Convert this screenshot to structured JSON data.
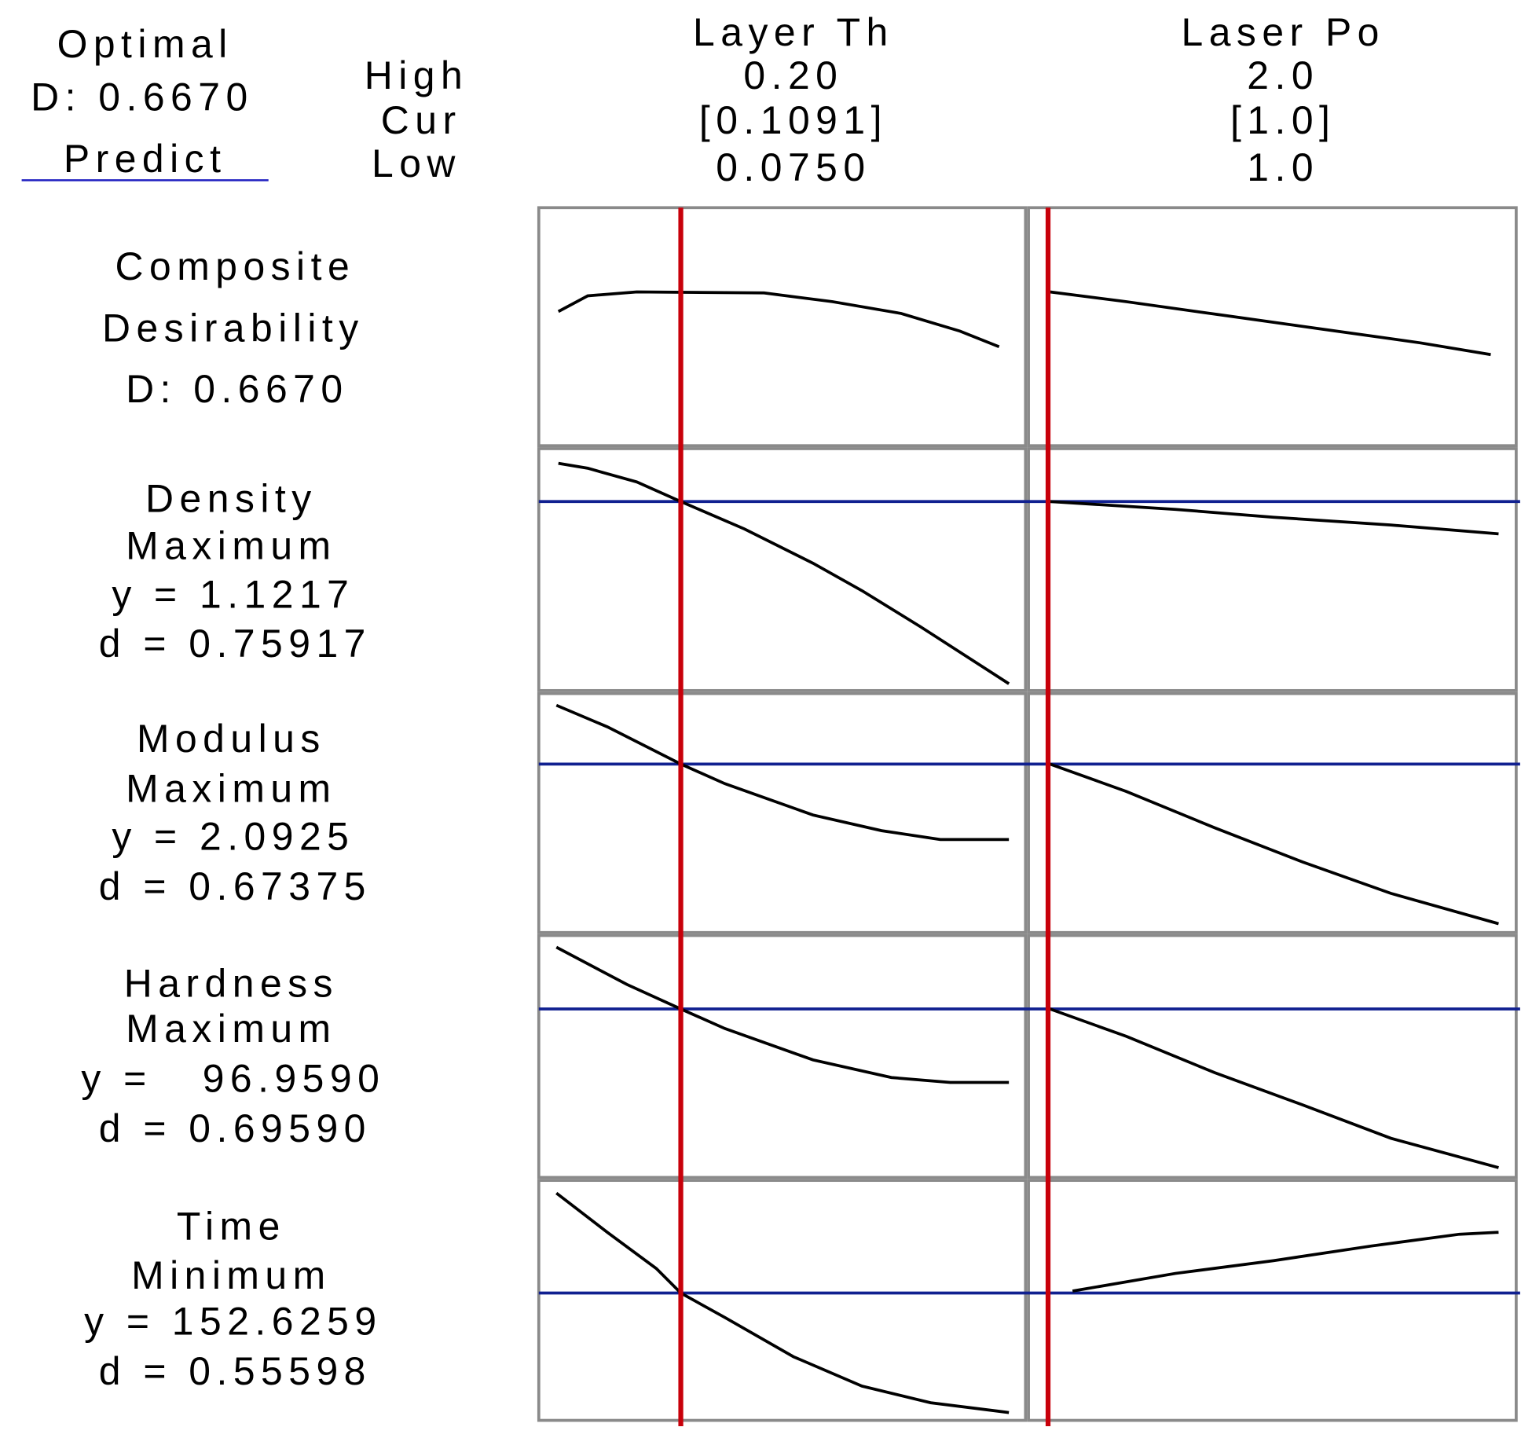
{
  "header": {
    "optimal": "Optimal",
    "d": "D: 0.6670",
    "predict": "Predict",
    "high": "High",
    "cur": "Cur",
    "low": "Low"
  },
  "factors": [
    {
      "name": "Layer Th",
      "high": "0.20",
      "cur": "[0.1091]",
      "low": "0.0750"
    },
    {
      "name": "Laser Po",
      "high": "2.0",
      "cur": "[1.0]",
      "low": "1.0"
    }
  ],
  "composite": {
    "title": [
      "Composite",
      "Desirability"
    ],
    "d": "D: 0.6670"
  },
  "responses": [
    {
      "name": "Density",
      "goal": "Maximum",
      "y": "y = 1.1217",
      "d": "d = 0.75917"
    },
    {
      "name": "Modulus",
      "goal": "Maximum",
      "y": "y = 2.0925",
      "d": "d = 0.67375"
    },
    {
      "name": "Hardness",
      "goal": "Maximum",
      "y": "y =   96.9590",
      "d": "d = 0.69590"
    },
    {
      "name": "Time",
      "goal": "Minimum",
      "y": "y = 152.6259",
      "d": "d = 0.55598"
    }
  ]
}
